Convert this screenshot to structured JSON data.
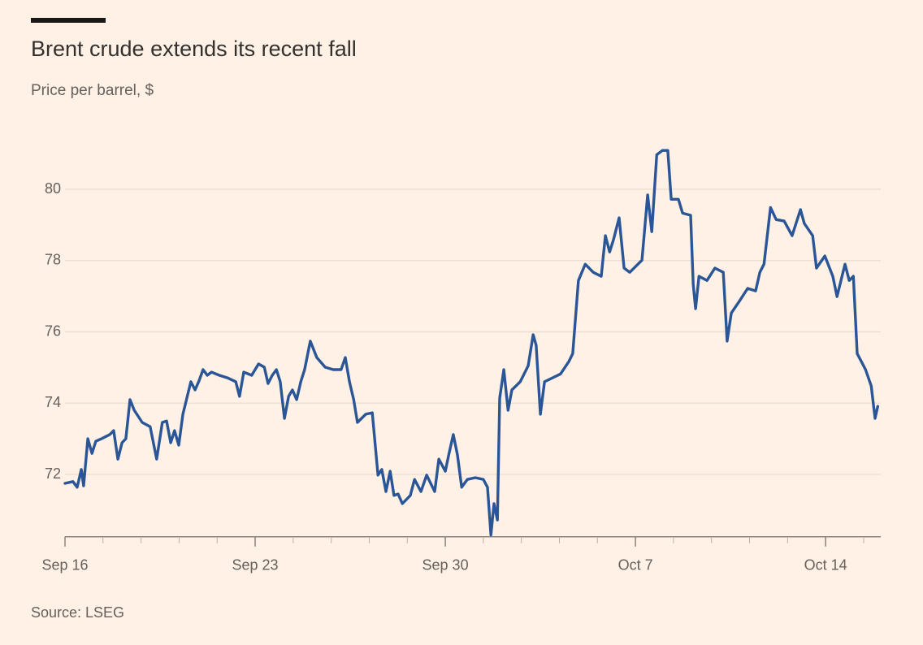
{
  "chart_data": {
    "type": "line",
    "title": "Brent crude extends its recent fall",
    "subtitle": "Price per barrel, $",
    "source": "Source: LSEG",
    "xlim": [
      0,
      21.45
    ],
    "xticks": [
      {
        "value": 0,
        "label": "Sep 16"
      },
      {
        "value": 5,
        "label": "Sep 23"
      },
      {
        "value": 10,
        "label": "Sep 30"
      },
      {
        "value": 15,
        "label": "Oct 7"
      },
      {
        "value": 20,
        "label": "Oct 14"
      }
    ],
    "xminorticks": [
      0,
      1,
      2,
      3,
      4,
      5,
      6,
      7,
      8,
      9,
      10,
      11,
      12,
      13,
      14,
      15,
      16,
      17,
      18,
      19,
      20,
      21
    ],
    "ylim": [
      70.25,
      81.5
    ],
    "yticks": [
      72,
      74,
      76,
      78,
      80
    ],
    "grid": true,
    "series": [
      {
        "name": "Brent crude",
        "color": "#2a5596",
        "x": [
          0,
          0.21,
          0.32,
          0.43,
          0.49,
          0.6,
          0.71,
          0.81,
          0.96,
          1.18,
          1.28,
          1.39,
          1.5,
          1.6,
          1.71,
          1.82,
          2.03,
          2.24,
          2.41,
          2.56,
          2.67,
          2.78,
          2.88,
          2.99,
          3.1,
          3.31,
          3.42,
          3.53,
          3.63,
          3.74,
          3.85,
          4.06,
          4.27,
          4.49,
          4.59,
          4.7,
          4.91,
          5.09,
          5.24,
          5.34,
          5.45,
          5.56,
          5.66,
          5.77,
          5.88,
          5.98,
          6.09,
          6.2,
          6.3,
          6.45,
          6.62,
          6.84,
          7.05,
          7.26,
          7.37,
          7.48,
          7.59,
          7.69,
          7.91,
          8.08,
          8.23,
          8.33,
          8.44,
          8.55,
          8.65,
          8.76,
          8.87,
          9.08,
          9.19,
          9.36,
          9.51,
          9.72,
          9.83,
          10.0,
          10.09,
          10.21,
          10.32,
          10.43,
          10.58,
          10.79,
          11.0,
          11.11,
          11.2,
          11.28,
          11.37,
          11.43,
          11.54,
          11.65,
          11.75,
          11.97,
          12.18,
          12.31,
          12.39,
          12.5,
          12.61,
          12.82,
          13.03,
          13.25,
          13.35,
          13.5,
          13.68,
          13.89,
          14.1,
          14.21,
          14.32,
          14.42,
          14.57,
          14.7,
          14.85,
          15.17,
          15.32,
          15.43,
          15.56,
          15.71,
          15.85,
          15.94,
          16.13,
          16.24,
          16.45,
          16.52,
          16.58,
          16.67,
          16.88,
          17.09,
          17.31,
          17.41,
          17.52,
          17.74,
          17.95,
          18.16,
          18.27,
          18.38,
          18.55,
          18.7,
          18.91,
          19.12,
          19.34,
          19.44,
          19.66,
          19.76,
          19.98,
          20.19,
          20.3,
          20.51,
          20.62,
          20.73,
          20.83,
          20.94,
          21.05,
          21.2,
          21.3,
          21.37
        ],
        "values": [
          71.75,
          71.8,
          71.64,
          72.14,
          71.68,
          73.0,
          72.59,
          72.93,
          73.0,
          73.12,
          73.23,
          72.43,
          72.89,
          73.0,
          74.1,
          73.8,
          73.46,
          73.34,
          72.43,
          73.46,
          73.5,
          72.89,
          73.23,
          72.82,
          73.69,
          74.6,
          74.37,
          74.64,
          74.94,
          74.78,
          74.87,
          74.78,
          74.71,
          74.6,
          74.19,
          74.87,
          74.78,
          75.1,
          75.01,
          74.55,
          74.78,
          74.94,
          74.6,
          73.57,
          74.19,
          74.37,
          74.1,
          74.6,
          74.94,
          75.74,
          75.28,
          75.01,
          74.94,
          74.94,
          75.28,
          74.6,
          74.1,
          73.46,
          73.69,
          73.73,
          71.98,
          72.14,
          71.52,
          72.09,
          71.41,
          71.45,
          71.18,
          71.41,
          71.86,
          71.52,
          71.98,
          71.52,
          72.43,
          72.09,
          72.55,
          73.12,
          72.55,
          71.64,
          71.86,
          71.91,
          71.86,
          71.64,
          70.3,
          71.18,
          70.72,
          74.14,
          74.94,
          73.8,
          74.37,
          74.6,
          75.05,
          75.92,
          75.62,
          73.69,
          74.6,
          74.71,
          74.82,
          75.17,
          75.39,
          77.44,
          77.9,
          77.67,
          77.56,
          78.7,
          78.24,
          78.58,
          79.2,
          77.79,
          77.67,
          78.01,
          79.84,
          78.81,
          80.97,
          81.09,
          81.09,
          79.72,
          79.72,
          79.33,
          79.27,
          77.33,
          76.65,
          77.56,
          77.44,
          77.79,
          77.67,
          75.74,
          76.53,
          76.87,
          77.22,
          77.15,
          77.67,
          77.9,
          79.49,
          79.15,
          79.11,
          78.7,
          79.43,
          79.04,
          78.7,
          77.79,
          78.13,
          77.56,
          76.99,
          77.9,
          77.44,
          77.56,
          75.39,
          75.17,
          74.94,
          74.48,
          73.57,
          73.91
        ]
      }
    ]
  }
}
